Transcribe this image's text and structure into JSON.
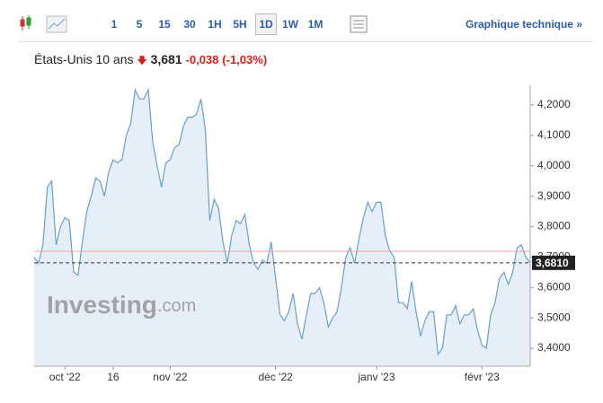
{
  "toolbar": {
    "intervals": [
      "1",
      "5",
      "15",
      "30",
      "1H",
      "5H",
      "1D",
      "1W",
      "1M"
    ],
    "active_index": 6,
    "link": "Graphique technique »"
  },
  "header": {
    "name": "États-Unis 10 ans",
    "price": "3,681",
    "change": "-0,038",
    "change_pct": "(-1,03%)"
  },
  "watermark": {
    "brand": "Investing",
    "suffix": ".com"
  },
  "chart_data": {
    "type": "area",
    "categories": [
      null,
      null,
      null,
      null,
      null,
      null,
      null,
      "oct '22",
      null,
      null,
      null,
      null,
      null,
      null,
      null,
      null,
      null,
      null,
      "16",
      null,
      null,
      null,
      null,
      null,
      null,
      null,
      null,
      null,
      null,
      null,
      null,
      "nov '22",
      null,
      null,
      null,
      null,
      null,
      null,
      null,
      null,
      null,
      null,
      null,
      null,
      null,
      null,
      null,
      null,
      null,
      null,
      null,
      null,
      null,
      null,
      null,
      "déc '22",
      null,
      null,
      null,
      null,
      null,
      null,
      null,
      null,
      null,
      null,
      null,
      null,
      null,
      null,
      null,
      null,
      null,
      null,
      null,
      null,
      null,
      null,
      "janv '23",
      null,
      null,
      null,
      null,
      null,
      null,
      null,
      null,
      null,
      null,
      null,
      null,
      null,
      null,
      null,
      null,
      null,
      null,
      null,
      null,
      null,
      null,
      null,
      "févr '23",
      null,
      null,
      null,
      null,
      null,
      null,
      null,
      null,
      null,
      null,
      null
    ],
    "values": [
      3.7,
      3.68,
      3.74,
      3.93,
      3.95,
      3.74,
      3.8,
      3.83,
      3.82,
      3.65,
      3.64,
      3.75,
      3.85,
      3.9,
      3.96,
      3.95,
      3.9,
      3.98,
      4.02,
      4.01,
      4.02,
      4.1,
      4.14,
      4.25,
      4.22,
      4.22,
      4.25,
      4.08,
      4.0,
      3.93,
      4.01,
      4.02,
      4.06,
      4.07,
      4.13,
      4.16,
      4.16,
      4.17,
      4.22,
      4.12,
      3.82,
      3.89,
      3.86,
      3.75,
      3.68,
      3.77,
      3.82,
      3.81,
      3.84,
      3.74,
      3.68,
      3.66,
      3.69,
      3.68,
      3.75,
      3.63,
      3.51,
      3.49,
      3.52,
      3.58,
      3.48,
      3.43,
      3.51,
      3.58,
      3.58,
      3.6,
      3.55,
      3.47,
      3.5,
      3.52,
      3.6,
      3.7,
      3.73,
      3.68,
      3.76,
      3.83,
      3.88,
      3.85,
      3.88,
      3.88,
      3.77,
      3.72,
      3.7,
      3.55,
      3.55,
      3.53,
      3.62,
      3.52,
      3.44,
      3.49,
      3.52,
      3.52,
      3.38,
      3.4,
      3.51,
      3.51,
      3.54,
      3.48,
      3.51,
      3.51,
      3.53,
      3.46,
      3.41,
      3.4,
      3.51,
      3.55,
      3.63,
      3.65,
      3.61,
      3.65,
      3.73,
      3.74,
      3.7,
      3.681
    ],
    "color": "#6a9fcb",
    "fill": "#e6eff7",
    "ylim": [
      3.341,
      4.265
    ],
    "yticks": [
      {
        "value": 3.4,
        "label": "3,4000"
      },
      {
        "value": 3.5,
        "label": "3,5000"
      },
      {
        "value": 3.6,
        "label": "3,6000"
      },
      {
        "value": 3.7,
        "label": "3,7000"
      },
      {
        "value": 3.8,
        "label": "3,8000"
      },
      {
        "value": 3.9,
        "label": "3,9000"
      },
      {
        "value": 4.0,
        "label": "4,0000"
      },
      {
        "value": 4.1,
        "label": "4,1000"
      },
      {
        "value": 4.2,
        "label": "4,2000"
      }
    ],
    "reference_line": {
      "value": 3.719,
      "color": "#e8a0a0"
    },
    "current": {
      "value": 3.681,
      "label": "3,6810"
    }
  }
}
